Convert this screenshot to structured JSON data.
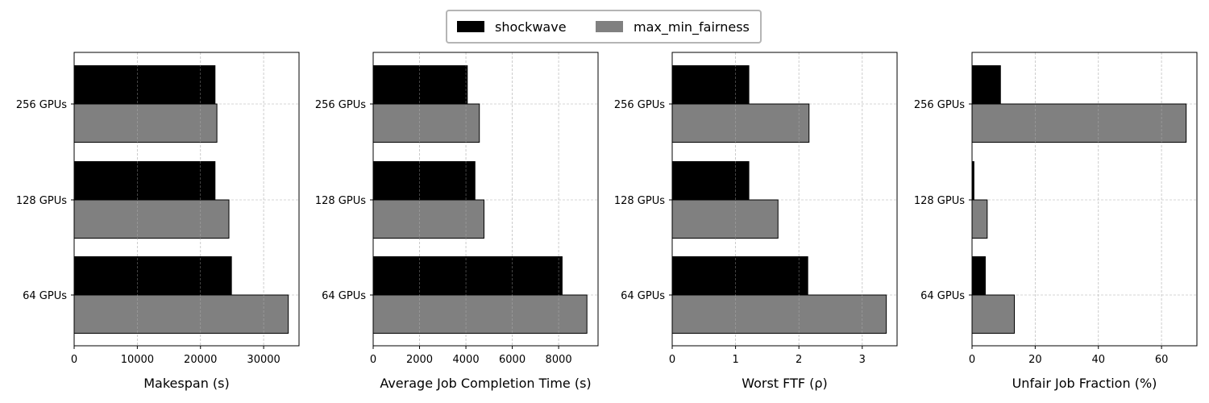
{
  "legend": {
    "items": [
      {
        "name": "shockwave",
        "color": "#000000"
      },
      {
        "name": "max_min_fairness",
        "color": "#808080"
      }
    ]
  },
  "chart_data": [
    {
      "type": "bar",
      "orientation": "horizontal",
      "categories": [
        "64 GPUs",
        "128 GPUs",
        "256 GPUs"
      ],
      "series": [
        {
          "name": "shockwave",
          "color": "#000000",
          "values": [
            24900,
            22300,
            22300
          ]
        },
        {
          "name": "max_min_fairness",
          "color": "#808080",
          "values": [
            33900,
            24500,
            22600
          ]
        }
      ],
      "xlabel": "Makespan (s)",
      "xlim": [
        0,
        35600
      ],
      "xticks": [
        0,
        10000,
        20000,
        30000
      ],
      "grid": true
    },
    {
      "type": "bar",
      "orientation": "horizontal",
      "categories": [
        "64 GPUs",
        "128 GPUs",
        "256 GPUs"
      ],
      "series": [
        {
          "name": "shockwave",
          "color": "#000000",
          "values": [
            8150,
            4390,
            4060
          ]
        },
        {
          "name": "max_min_fairness",
          "color": "#808080",
          "values": [
            9220,
            4780,
            4580
          ]
        }
      ],
      "xlabel": "Average Job Completion Time (s)",
      "xlim": [
        0,
        9700
      ],
      "xticks": [
        0,
        2000,
        4000,
        6000,
        8000
      ],
      "grid": true
    },
    {
      "type": "bar",
      "orientation": "horizontal",
      "categories": [
        "64 GPUs",
        "128 GPUs",
        "256 GPUs"
      ],
      "series": [
        {
          "name": "shockwave",
          "color": "#000000",
          "values": [
            2.14,
            1.21,
            1.21
          ]
        },
        {
          "name": "max_min_fairness",
          "color": "#808080",
          "values": [
            3.38,
            1.67,
            2.16
          ]
        }
      ],
      "xlabel": "Worst FTF (ρ)",
      "xlim": [
        0,
        3.55
      ],
      "xticks": [
        0,
        1,
        2,
        3
      ],
      "grid": true
    },
    {
      "type": "bar",
      "orientation": "horizontal",
      "categories": [
        "64 GPUs",
        "128 GPUs",
        "256 GPUs"
      ],
      "series": [
        {
          "name": "shockwave",
          "color": "#000000",
          "values": [
            4.2,
            0.6,
            9.0
          ]
        },
        {
          "name": "max_min_fairness",
          "color": "#808080",
          "values": [
            13.4,
            4.8,
            67.8
          ]
        }
      ],
      "xlabel": "Unfair Job Fraction (%)",
      "xlim": [
        0,
        71.2
      ],
      "xticks": [
        0,
        20,
        40,
        60
      ],
      "grid": true
    }
  ]
}
